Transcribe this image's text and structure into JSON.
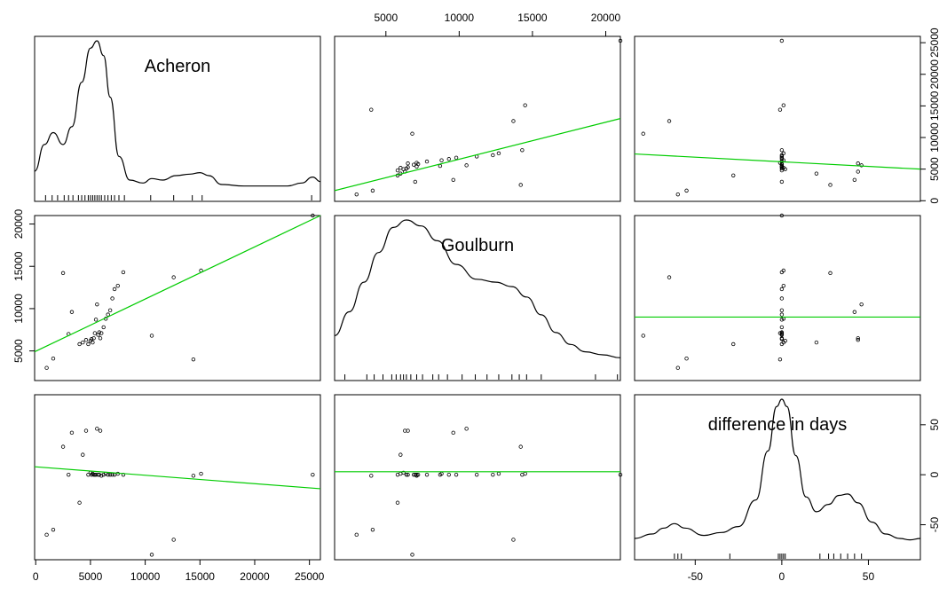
{
  "chart_data": {
    "type": "scatter",
    "variables": [
      "Acheron",
      "Goulburn",
      "difference in days"
    ],
    "ranges": {
      "Acheron": [
        -100,
        26000
      ],
      "Goulburn": [
        1500,
        21000
      ],
      "difference in days": [
        -85,
        80
      ]
    },
    "axis_ticks": {
      "Acheron": [
        0,
        5000,
        10000,
        15000,
        20000,
        25000
      ],
      "Goulburn": [
        5000,
        10000,
        15000,
        20000
      ],
      "difference in days": [
        -50,
        0,
        50
      ]
    },
    "panels_smoother_color": "#00cc00",
    "points": {
      "Acheron": [
        1000,
        1600,
        2500,
        3000,
        3300,
        4000,
        4300,
        4600,
        4800,
        5000,
        5100,
        5200,
        5300,
        5400,
        5500,
        5600,
        5700,
        5800,
        5900,
        6000,
        6200,
        6400,
        6600,
        6800,
        7000,
        7200,
        7500,
        8000,
        10600,
        12600,
        14400,
        15100,
        25300
      ],
      "Goulburn": [
        3000,
        4100,
        14200,
        7000,
        9600,
        5800,
        6000,
        6300,
        5800,
        6200,
        6400,
        6000,
        6500,
        7100,
        8700,
        10500,
        6900,
        7200,
        6500,
        7100,
        7800,
        8800,
        9300,
        9800,
        11200,
        12300,
        12700,
        14300,
        6800,
        13700,
        4000,
        14500,
        21000
      ],
      "difference in days": [
        -60,
        -55,
        28,
        0,
        42,
        -28,
        20,
        44,
        0,
        2,
        0,
        1,
        0,
        0,
        0,
        46,
        0,
        0,
        44,
        -1,
        0,
        1,
        0,
        0,
        0,
        0,
        1,
        0,
        -80,
        -65,
        -1,
        1,
        0
      ]
    },
    "fit_lines": [
      {
        "y_var": "Acheron",
        "x_var": "Goulburn",
        "x_start": 1500,
        "y_start": 1600,
        "x_end": 21000,
        "y_end": 13000
      },
      {
        "y_var": "Acheron",
        "x_var": "difference in days",
        "x_start": -85,
        "y_start": 7400,
        "x_end": 80,
        "y_end": 5000
      },
      {
        "y_var": "Goulburn",
        "x_var": "Acheron",
        "x_start": -100,
        "y_start": 4900,
        "x_end": 26000,
        "y_end": 21000
      },
      {
        "y_var": "Goulburn",
        "x_var": "difference in days",
        "x_start": -85,
        "y_start": 9000,
        "x_end": 80,
        "y_end": 9000
      },
      {
        "y_var": "difference in days",
        "x_var": "Acheron",
        "x_start": -100,
        "y_start": 8,
        "x_end": 26000,
        "y_end": -14
      },
      {
        "y_var": "difference in days",
        "x_var": "Goulburn",
        "x_start": 1500,
        "y_start": 3,
        "x_end": 21000,
        "y_end": 3
      }
    ],
    "densities": {
      "Acheron": [
        [
          -100,
          0.12
        ],
        [
          800,
          0.3
        ],
        [
          1600,
          0.38
        ],
        [
          2500,
          0.3
        ],
        [
          3300,
          0.42
        ],
        [
          4200,
          0.72
        ],
        [
          5000,
          0.95
        ],
        [
          5600,
          1.0
        ],
        [
          6200,
          0.9
        ],
        [
          6800,
          0.62
        ],
        [
          7600,
          0.22
        ],
        [
          8600,
          0.06
        ],
        [
          9800,
          0.04
        ],
        [
          10600,
          0.07
        ],
        [
          11600,
          0.06
        ],
        [
          12800,
          0.09
        ],
        [
          14100,
          0.1
        ],
        [
          15000,
          0.11
        ],
        [
          15800,
          0.09
        ],
        [
          17000,
          0.03
        ],
        [
          19000,
          0.02
        ],
        [
          21000,
          0.02
        ],
        [
          23000,
          0.02
        ],
        [
          24300,
          0.04
        ],
        [
          25300,
          0.08
        ],
        [
          26000,
          0.05
        ]
      ],
      "Goulburn": [
        [
          1500,
          0.22
        ],
        [
          2500,
          0.38
        ],
        [
          3500,
          0.58
        ],
        [
          4500,
          0.78
        ],
        [
          5500,
          0.95
        ],
        [
          6400,
          1.0
        ],
        [
          7400,
          0.96
        ],
        [
          8500,
          0.86
        ],
        [
          9800,
          0.7
        ],
        [
          11200,
          0.6
        ],
        [
          12500,
          0.58
        ],
        [
          13600,
          0.55
        ],
        [
          14600,
          0.48
        ],
        [
          15600,
          0.36
        ],
        [
          16600,
          0.24
        ],
        [
          17600,
          0.16
        ],
        [
          18600,
          0.11
        ],
        [
          19800,
          0.09
        ],
        [
          21000,
          0.07
        ]
      ],
      "difference in days": [
        [
          -85,
          0.06
        ],
        [
          -75,
          0.09
        ],
        [
          -68,
          0.13
        ],
        [
          -62,
          0.16
        ],
        [
          -56,
          0.13
        ],
        [
          -45,
          0.08
        ],
        [
          -35,
          0.1
        ],
        [
          -25,
          0.14
        ],
        [
          -15,
          0.32
        ],
        [
          -8,
          0.65
        ],
        [
          -3,
          0.95
        ],
        [
          0,
          1.0
        ],
        [
          3,
          0.95
        ],
        [
          8,
          0.62
        ],
        [
          14,
          0.34
        ],
        [
          20,
          0.24
        ],
        [
          27,
          0.29
        ],
        [
          33,
          0.35
        ],
        [
          38,
          0.36
        ],
        [
          44,
          0.3
        ],
        [
          52,
          0.17
        ],
        [
          60,
          0.09
        ],
        [
          68,
          0.06
        ],
        [
          74,
          0.05
        ],
        [
          80,
          0.06
        ]
      ]
    },
    "rug": {
      "Acheron": [
        900,
        1500,
        2000,
        2600,
        3000,
        3400,
        3900,
        4200,
        4500,
        4800,
        5000,
        5200,
        5400,
        5600,
        5800,
        6000,
        6300,
        6600,
        6900,
        7200,
        7600,
        8100,
        10500,
        12600,
        14300,
        15200,
        25200
      ],
      "Goulburn": [
        2200,
        3700,
        4200,
        4800,
        5400,
        5700,
        6000,
        6200,
        6400,
        6700,
        7100,
        7500,
        8200,
        8600,
        9200,
        10200,
        11100,
        11900,
        12700,
        13600,
        14100,
        14600,
        15600,
        19300,
        20800
      ],
      "difference in days": [
        -62,
        -60,
        -58,
        -30,
        -2,
        -1,
        0,
        1,
        2,
        22,
        27,
        30,
        34,
        38,
        42,
        46
      ]
    }
  }
}
